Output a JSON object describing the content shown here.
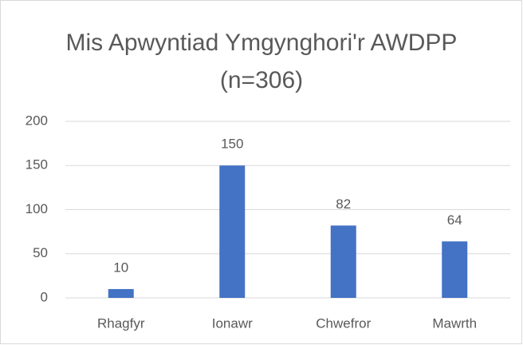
{
  "chart_data": {
    "type": "bar",
    "title": "Mis Apwyntiad Ymgynghori'r AWDPP (n=306)",
    "categories": [
      "Rhagfyr",
      "Ionawr",
      "Chwefror",
      "Mawrth"
    ],
    "values": [
      10,
      150,
      82,
      64
    ],
    "color": "#4472c4",
    "ylim": [
      0,
      200
    ],
    "yticks": [
      0,
      50,
      100,
      150,
      200
    ],
    "grid": true
  }
}
